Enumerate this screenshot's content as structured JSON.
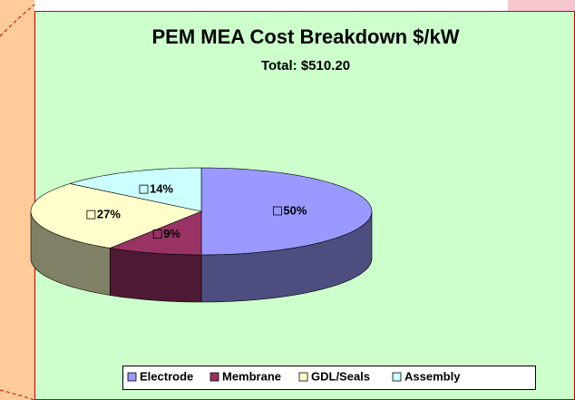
{
  "chart_data": {
    "type": "pie",
    "title": "PEM MEA Cost Breakdown $/kW",
    "subtitle": "Total: $510.20",
    "categories": [
      "Electrode",
      "Membrane",
      "GDL/Seals",
      "Assembly"
    ],
    "values": [
      50,
      9,
      27,
      14
    ],
    "value_labels": [
      "50%",
      "9%",
      "27%",
      "14%"
    ],
    "colors": [
      "#9999ff",
      "#993366",
      "#ffffcc",
      "#ccffff"
    ],
    "legend": "bottom"
  }
}
